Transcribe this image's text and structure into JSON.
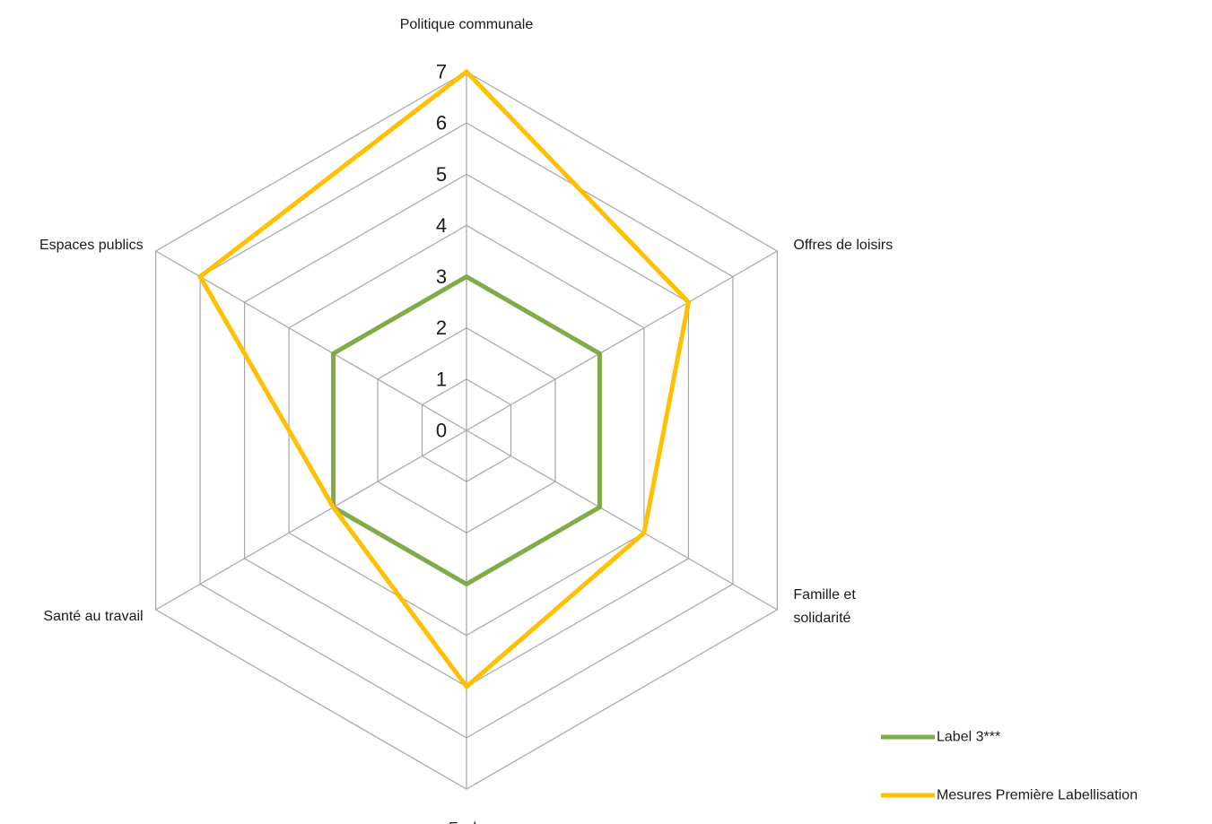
{
  "chart_data": {
    "type": "radar",
    "categories": [
      "Politique communale",
      "Offres de loisirs",
      "Famille et solidarité",
      "Ecole",
      "Santé au travail",
      "Espaces publics"
    ],
    "series": [
      {
        "name": "Label 3***",
        "values": [
          3,
          3,
          3,
          3,
          3,
          3
        ],
        "color": "#7fab48"
      },
      {
        "name": "Mesures Première Labellisation",
        "values": [
          7,
          5,
          4,
          5,
          3,
          6
        ],
        "color": "#ffc000"
      }
    ],
    "rlim": [
      0,
      7
    ],
    "ticks": [
      "0",
      "1",
      "2",
      "3",
      "4",
      "5",
      "6",
      "7"
    ],
    "grid": true,
    "legend": "bottom-right"
  }
}
